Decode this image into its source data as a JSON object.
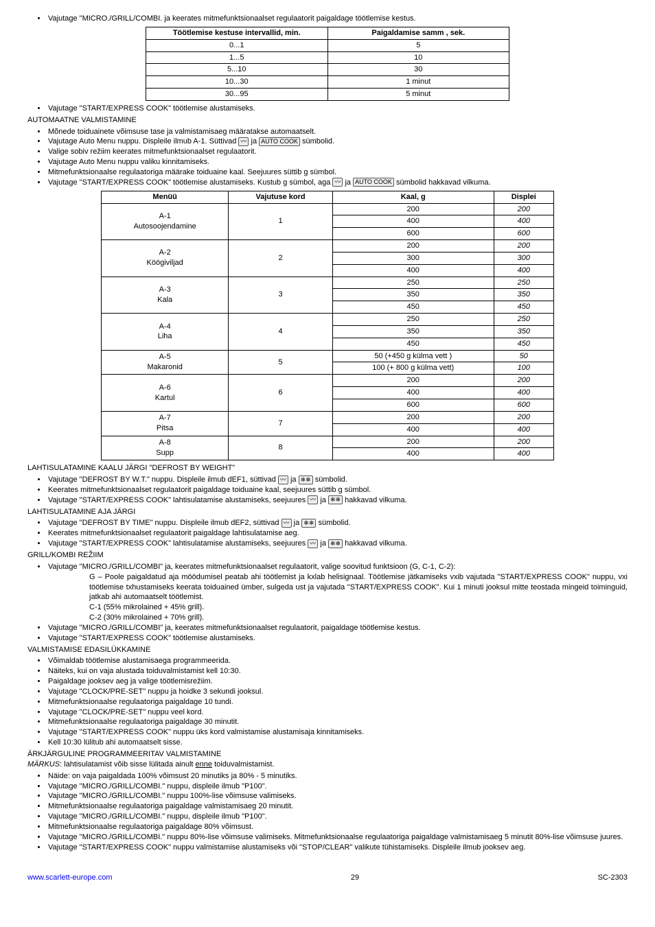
{
  "top_bullet": "Vajutage \"MICRO./GRILL/COMBI. ja keerates mitmefunktsionaalset regulaatorit paigaldage töötlemise kestus.",
  "table1": {
    "headers": [
      "Töötlemise kestuse intervallid, min.",
      "Paigaldamise samm , sek."
    ],
    "rows": [
      [
        "0...1",
        "5"
      ],
      [
        "1...5",
        "10"
      ],
      [
        "5...10",
        "30"
      ],
      [
        "10...30",
        "1 minut"
      ],
      [
        "30...95",
        "5 minut"
      ]
    ]
  },
  "bul_start_express": "Vajutage \"START/EXPRESS COOK\"  töötlemise alustamiseks.",
  "sec_auto": "AUTOMAATNE VALMISTAMINE",
  "auto_b1": "Mõnede toiduainete võimsuse tase ja valmistamisaeg määratakse automaatselt.",
  "auto_b2_a": "Vajutage Auto Menu nuppu. Displeile ilmub A-1. Süttivad ",
  "auto_b2_b": " ja ",
  "auto_b2_c": " sümbolid.",
  "auto_b3": "Valige sobiv režiim keerates mitmefunktsionaalset regulaatorit.",
  "auto_b4": "Vajutage Auto Menu nuppu valiku kinnitamiseks.",
  "auto_b5": "Mitmefunktsionaalse regulaatoriga määrake toiduaine kaal. Seejuures süttib g sümbol.",
  "auto_b6_a": "Vajutage \"START/EXPRESS COOK\" töötlemise alustamiseks. Kustub g sümbol, aga ",
  "auto_b6_b": " ja ",
  "auto_b6_c": " sümbolid hakkavad vilkuma.",
  "icon1": "〰",
  "icon2": "AUTO COOK",
  "icon3": "❄❄",
  "table2": {
    "headers": [
      "Menüü",
      "Vajutuse kord",
      "Kaal, g",
      "Displei"
    ],
    "groups": [
      {
        "menu": "A-1\nAutosoojendamine",
        "press": "1",
        "rows": [
          [
            "200",
            "200"
          ],
          [
            "400",
            "400"
          ],
          [
            "600",
            "600"
          ]
        ]
      },
      {
        "menu": "A-2\nKöögiviljad",
        "press": "2",
        "rows": [
          [
            "200",
            "200"
          ],
          [
            "300",
            "300"
          ],
          [
            "400",
            "400"
          ]
        ]
      },
      {
        "menu": "A-3\nKala",
        "press": "3",
        "rows": [
          [
            "250",
            "250"
          ],
          [
            "350",
            "350"
          ],
          [
            "450",
            "450"
          ]
        ]
      },
      {
        "menu": "A-4\nLiha",
        "press": "4",
        "rows": [
          [
            "250",
            "250"
          ],
          [
            "350",
            "350"
          ],
          [
            "450",
            "450"
          ]
        ]
      },
      {
        "menu": "A-5\nMakaronid",
        "press": "5",
        "rows": [
          [
            "50 (+450 g külma vett )",
            "50"
          ],
          [
            "100 (+ 800 g külma vett)",
            "100"
          ]
        ]
      },
      {
        "menu": "A-6\nKartul",
        "press": "6",
        "rows": [
          [
            "200",
            "200"
          ],
          [
            "400",
            "400"
          ],
          [
            "600",
            "600"
          ]
        ]
      },
      {
        "menu": "A-7\nPitsa",
        "press": "7",
        "rows": [
          [
            "200",
            "200"
          ],
          [
            "400",
            "400"
          ]
        ]
      },
      {
        "menu": "A-8\nSupp",
        "press": "8",
        "rows": [
          [
            "200",
            "200"
          ],
          [
            "400",
            "400"
          ]
        ]
      }
    ]
  },
  "sec_def_weight": "LAHTISULATAMINE KAALU JÄRGI \"DEFROST BY WEIGHT\"",
  "dw1_a": "Vajutage \"DEFROST BY W.T.\" nuppu. Displeile ilmub dEF1, süttivad ",
  "dw1_b": " ja ",
  "dw1_c": " sümbolid.",
  "dw2": "Keerates mitmefunktsionaalset regulaatorit paigaldage toiduaine kaal, seejuures süttib g sümbol.",
  "dw3_a": "Vajutage \"START/EXPRESS COOK\" lahtisulatamise alustamiseks, seejuures ",
  "dw3_b": " ja ",
  "dw3_c": " hakkavad vilkuma.",
  "sec_def_time": "LAHTISULATAMINE AJA JÄRGI",
  "dt1_a": "Vajutage \"DEFROST BY TIME\" nuppu. Displeile ilmub dEF2, süttivad ",
  "dt1_b": " ja ",
  "dt1_c": " sümbolid.",
  "dt2": "Keerates mitmefunktsionaalset regulaatorit paigaldage lahtisulatamise aeg.",
  "dt3_a": "Vajutage \"START/EXPRESS COOK\" lahtisulatamise alustamiseks, seejuures ",
  "dt3_b": " ja ",
  "dt3_c": " hakkavad vilkuma.",
  "sec_grill": "GRILL/KOMBI REŽIIM",
  "gr1": "Vajutage \"MICRO./GRILL/COMBI\" ja, keerates mitmefunktsionaalset regulaatorit, valige soovitud funktsioon (G, C-1, C-2):",
  "gr_g": "G – Poole paigaldatud aja möödumisel peatab ahi töötlemist ja kxlab helisignaal. Töötlemise jätkamiseks vxib vajutada \"START/EXPRESS COOK\" nuppu, vxi töötlemise txhustamiseks keerata toiduained ümber, sulgeda ust ja vajutada \"START/EXPRESS COOK\". Kui 1 minuti jooksul mitte teostada mingeid toiminguid, jatkab ahi automaatselt töötlemist.",
  "gr_c1": "C-1 (55% mikrolained + 45% grill).",
  "gr_c2": "C-2 (30% mikrolained + 70% grill).",
  "gr2": "Vajutage \"MICRO./GRILL/COMBI\" ja, keerates mitmefunktsionaalset regulaatorit, paigaldage töötlemise kestus.",
  "gr3": "Vajutage \"START/EXPRESS COOK\" töötlemise alustamiseks.",
  "sec_val": "VALMISTAMISE EDASILÜKKAMINE",
  "val": [
    "Võimaldab töötlemise alustamisaega programmeerida.",
    "Näiteks, kui on vaja alustada toiduvalmistamist kell 10:30.",
    "Paigaldage jooksev aeg ja valige töötlemisrežiim.",
    "Vajutage \"CLOCK/PRE-SET\" nuppu ja hoidke 3 sekundi jooksul.",
    "Mitmefunktsionaalse regulaatoriga paigaldage 10 tundi.",
    "Vajutage \"CLOCK/PRE-SET\" nuppu veel kord.",
    "Mitmefunktsionaalse regulaatoriga paigaldage 30 minutit.",
    "Vajutage \"START/EXPRESS COOK\" nuppu üks kord valmistamise alustamisaja kinnitamiseks.",
    "Kell 10:30 lülitub ahi automaatselt sisse."
  ],
  "sec_ark": "ÄRKJÄRGULINE PROGRAMMEERITAV VALMISTAMINE",
  "markus_a": "MÄRKUS",
  "markus_b": ": lahtisulatamist võib sisse lülitada ainult ",
  "markus_c": "enne",
  "markus_d": " toiduvalmistamist.",
  "ark": [
    "Näide: on vaja paigaldada 100% võimsust 20 minutiks ja 80% - 5 minutiks.",
    "Vajutage \"MICRO./GRILL/COMBI.\" nuppu, displeile ilmub \"P100\".",
    "Vajutage \"MICRO./GRILL/COMBI.\" nuppu 100%-lise võimsuse valimiseks.",
    "Mitmefunktsionaalse regulaatoriga paigaldage valmistamisaeg 20 minutit.",
    "Vajutage \"MICRO./GRILL/COMBI.\" nuppu, displeile ilmub \"P100\".",
    "Mitmefunktsionaalse regulaatoriga paigaldage 80% võimsust.",
    "Vajutage \"MICRO./GRILL/COMBI.\" nuppu 80%-lise võimsuse valimiseks. Mitmefunktsionaalse regulaatoriga paigaldage valmistamisaeg 5 minutit 80%-lise võimsuse juures.",
    "Vajutage \"START/EXPRESS COOK\" nuppu valmistamise alustamiseks või \"STOP/CLEAR\" valikute tühistamiseks. Displeile ilmub jooksev aeg."
  ],
  "footer": {
    "url": "www.scarlett-europe.com",
    "page": "29",
    "model": "SC-2303"
  }
}
